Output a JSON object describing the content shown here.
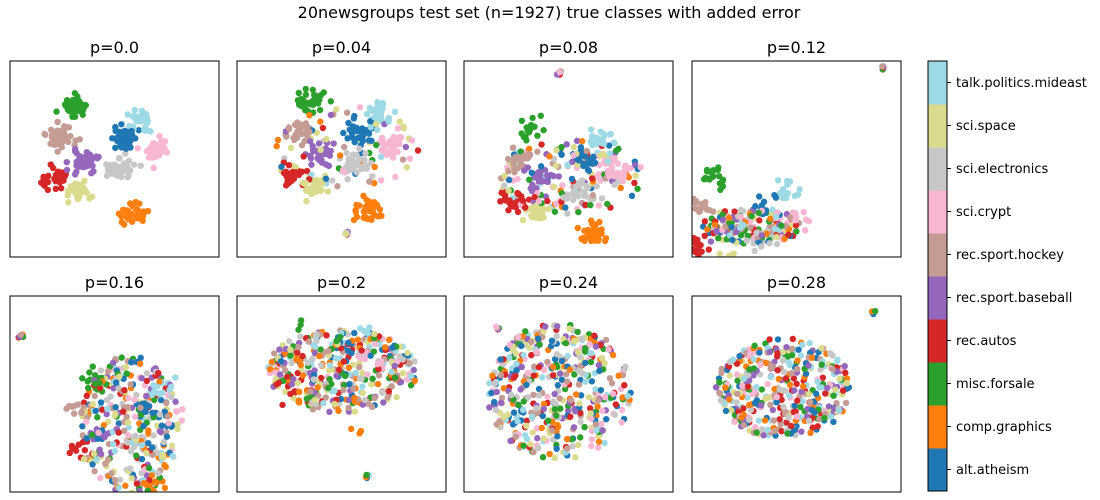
{
  "chart_data": {
    "type": "scatter",
    "title": "20newsgroups test set (n=1927) true classes with added error",
    "panels": [
      {
        "title": "p=0.0",
        "p": 0.0
      },
      {
        "title": "p=0.04",
        "p": 0.04
      },
      {
        "title": "p=0.08",
        "p": 0.08
      },
      {
        "title": "p=0.12",
        "p": 0.12
      },
      {
        "title": "p=0.16",
        "p": 0.16
      },
      {
        "title": "p=0.2",
        "p": 0.2
      },
      {
        "title": "p=0.24",
        "p": 0.24
      },
      {
        "title": "p=0.28",
        "p": 0.28
      }
    ],
    "classes": [
      "alt.atheism",
      "comp.graphics",
      "misc.forsale",
      "rec.autos",
      "rec.sport.baseball",
      "rec.sport.hockey",
      "sci.crypt",
      "sci.electronics",
      "sci.space",
      "talk.politics.mideast"
    ],
    "colors": [
      "#1f77b4",
      "#ff7f0e",
      "#2ca02c",
      "#d62728",
      "#9467bd",
      "#c49c94",
      "#f7b6d2",
      "#c7c7c7",
      "#dbdb8d",
      "#9edae5"
    ],
    "axes_ticks": "none",
    "grid": false,
    "colorbar": "right"
  }
}
